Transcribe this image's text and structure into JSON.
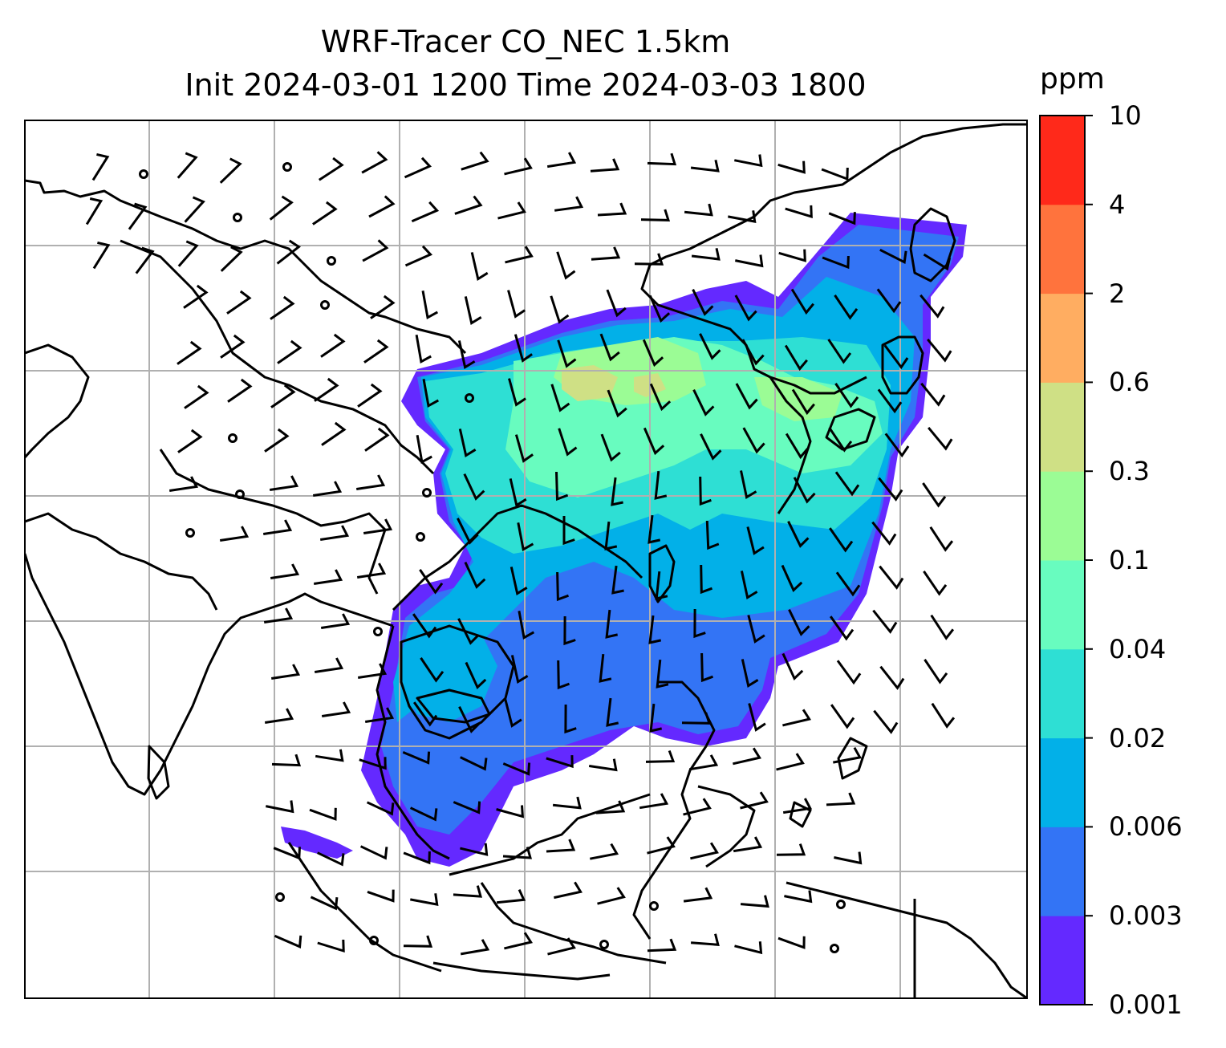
{
  "title": {
    "line1": "WRF-Tracer CO_NEC 1.5km",
    "line2": "Init 2024-03-01 1200 Time 2024-03-03 1800"
  },
  "colorbar": {
    "unit": "ppm",
    "levels": [
      "0.001",
      "0.003",
      "0.006",
      "0.02",
      "0.04",
      "0.1",
      "0.3",
      "0.6",
      "2",
      "4",
      "10"
    ],
    "colors": [
      "#6429ff",
      "#3374f5",
      "#02b0e8",
      "#2edfd4",
      "#68fcbf",
      "#9bfc95",
      "#cfe085",
      "#ffad61",
      "#ff733d",
      "#ff291a"
    ]
  },
  "map": {
    "gridlines": true,
    "wind_barbs": true,
    "tracer": "CO_NEC",
    "level": "1.5km"
  }
}
